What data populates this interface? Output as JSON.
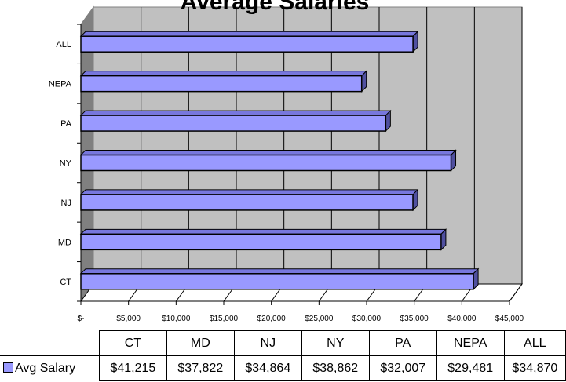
{
  "chart_data": {
    "type": "bar",
    "orientation": "horizontal",
    "title": "Average Salaries",
    "categories": [
      "CT",
      "MD",
      "NJ",
      "NY",
      "PA",
      "NEPA",
      "ALL"
    ],
    "series": [
      {
        "name": "Avg Salary",
        "values": [
          41215,
          37822,
          34864,
          38862,
          32007,
          29481,
          34870
        ]
      }
    ],
    "value_labels": [
      "$41,215",
      "$37,822",
      "$34,864",
      "$38,862",
      "$32,007",
      "$29,481",
      "$34,870"
    ],
    "xlim": [
      0,
      45000
    ],
    "x_ticks": [
      0,
      5000,
      10000,
      15000,
      20000,
      25000,
      30000,
      35000,
      40000,
      45000
    ],
    "x_tick_labels": [
      "$-",
      "$5,000",
      "$10,000",
      "$15,000",
      "$20,000",
      "$25,000",
      "$30,000",
      "$35,000",
      "$40,000",
      "$45,000"
    ],
    "gridlines": "vertical, major",
    "legend": "data table, left",
    "bar_color": "#9999ff",
    "plot_background": "#c0c0c0",
    "style": "3-D clustered bar with data table"
  }
}
